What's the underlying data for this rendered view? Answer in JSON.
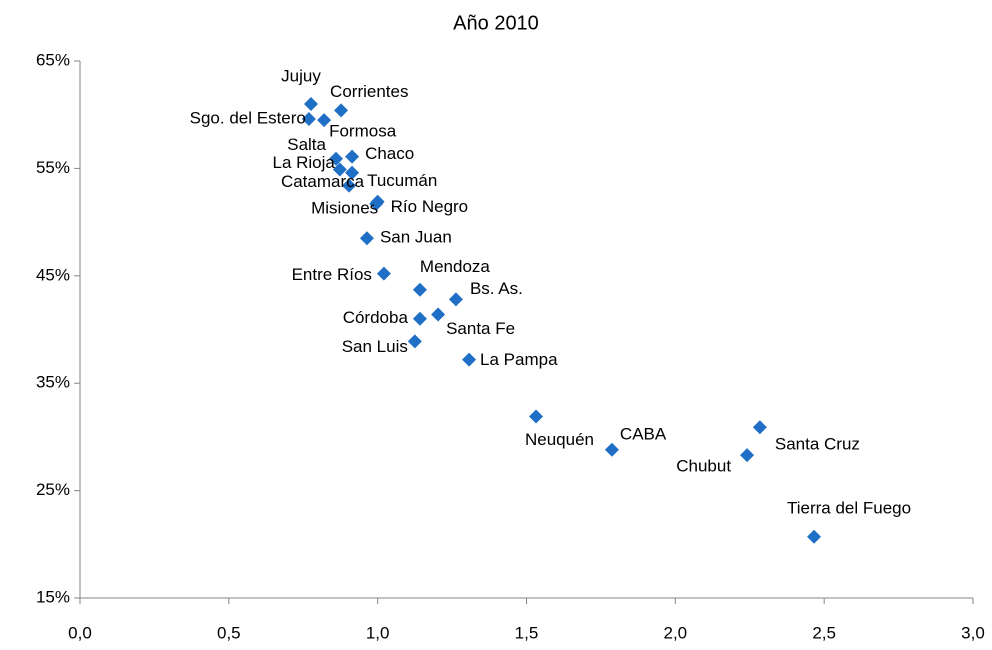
{
  "chart_data": {
    "type": "scatter",
    "subtitle": "Año 2010",
    "color": "#1f6fc6",
    "labels": [
      "Jujuy",
      "Corrientes",
      "Sgo. del Estero",
      "Formosa",
      "Salta",
      "Chaco",
      "La Rioja",
      "Tucumán",
      "Catamarca",
      "Misiones",
      "Río Negro",
      "San Juan",
      "Entre Ríos",
      "Mendoza",
      "Bs. As.",
      "Córdoba",
      "Santa Fe",
      "San Luis",
      "La Pampa",
      "Neuquén",
      "CABA",
      "Santa Cruz",
      "Chubut",
      "Tierra del Fuego"
    ],
    "x": [
      0.776,
      0.877,
      0.769,
      0.82,
      0.86,
      0.914,
      0.873,
      0.914,
      0.904,
      0.995,
      1.0,
      0.964,
      1.021,
      1.142,
      1.263,
      1.142,
      1.203,
      1.125,
      1.307,
      1.532,
      1.787,
      2.284,
      2.241,
      2.466
    ],
    "values": [
      61.0,
      60.4,
      59.6,
      59.5,
      55.9,
      56.1,
      54.9,
      54.6,
      53.4,
      51.7,
      51.9,
      48.5,
      45.2,
      43.7,
      42.8,
      41.0,
      41.4,
      38.9,
      37.2,
      31.9,
      28.8,
      30.9,
      28.3,
      20.7
    ],
    "xlim": [
      0,
      3
    ],
    "ylim": [
      15,
      65
    ],
    "xticks": [
      {
        "value": 0,
        "label": "0,0"
      },
      {
        "value": 0.5,
        "label": "0,5"
      },
      {
        "value": 1,
        "label": "1,0"
      },
      {
        "value": 1.5,
        "label": "1,5"
      },
      {
        "value": 2,
        "label": "2,0"
      },
      {
        "value": 2.5,
        "label": "2,5"
      },
      {
        "value": 3,
        "label": "3,0"
      }
    ],
    "yticks": [
      {
        "value": 15,
        "label": "15%"
      },
      {
        "value": 25,
        "label": "25%"
      },
      {
        "value": 35,
        "label": "35%"
      },
      {
        "value": 45,
        "label": "45%"
      },
      {
        "value": 55,
        "label": "55%"
      },
      {
        "value": 65,
        "label": "65%"
      }
    ]
  }
}
